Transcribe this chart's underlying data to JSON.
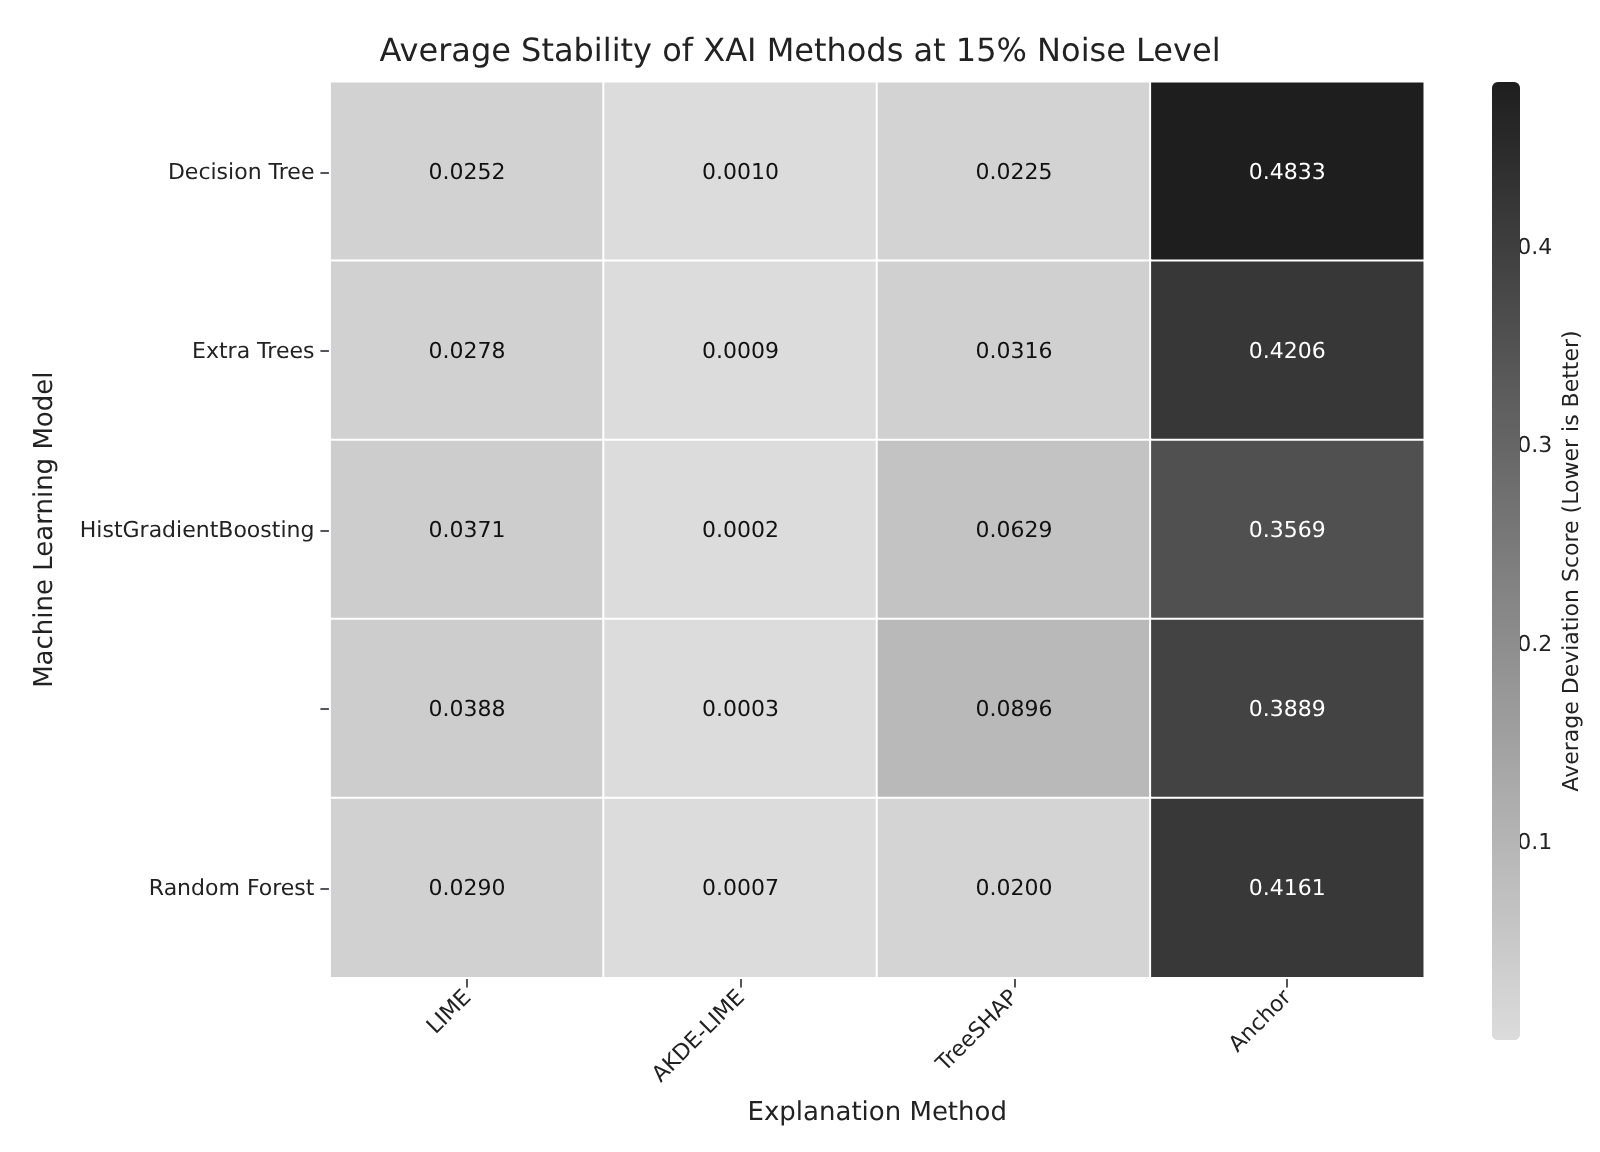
{
  "chart_data": {
    "type": "heatmap",
    "title": "Average Stability of XAI Methods at 15% Noise Level",
    "xlabel": "Explanation Method",
    "ylabel": "Machine Learning Model",
    "clabel": "Average Deviation Score (Lower is Better)",
    "categories": [
      "LIME",
      "AKDE-LIME",
      "TreeSHAP",
      "Anchor"
    ],
    "y_categories": [
      "Decision Tree",
      "Extra Trees",
      "HistGradientBoosting",
      null,
      "Random Forest"
    ],
    "cells": [
      [
        0.0252,
        0.001,
        0.0225,
        0.4833
      ],
      [
        0.0278,
        0.0009,
        0.0316,
        0.4206
      ],
      [
        0.0371,
        0.0002,
        0.0629,
        0.3569
      ],
      [
        0.0388,
        0.0003,
        0.0896,
        0.3889
      ],
      [
        0.029,
        0.0007,
        0.02,
        0.4161
      ]
    ],
    "cell_labels": [
      [
        "0.0252",
        "0.0010",
        "0.0225",
        "0.4833"
      ],
      [
        "0.0278",
        "0.0009",
        "0.0316",
        "0.4206"
      ],
      [
        "0.0371",
        "0.0002",
        "0.0629",
        "0.3569"
      ],
      [
        "0.0388",
        "0.0003",
        "0.0896",
        "0.3889"
      ],
      [
        "0.0290",
        "0.0007",
        "0.0200",
        "0.4161"
      ]
    ],
    "clim": [
      0.0002,
      0.4833
    ],
    "cticks": [
      0.1,
      0.2,
      0.3,
      0.4
    ]
  }
}
